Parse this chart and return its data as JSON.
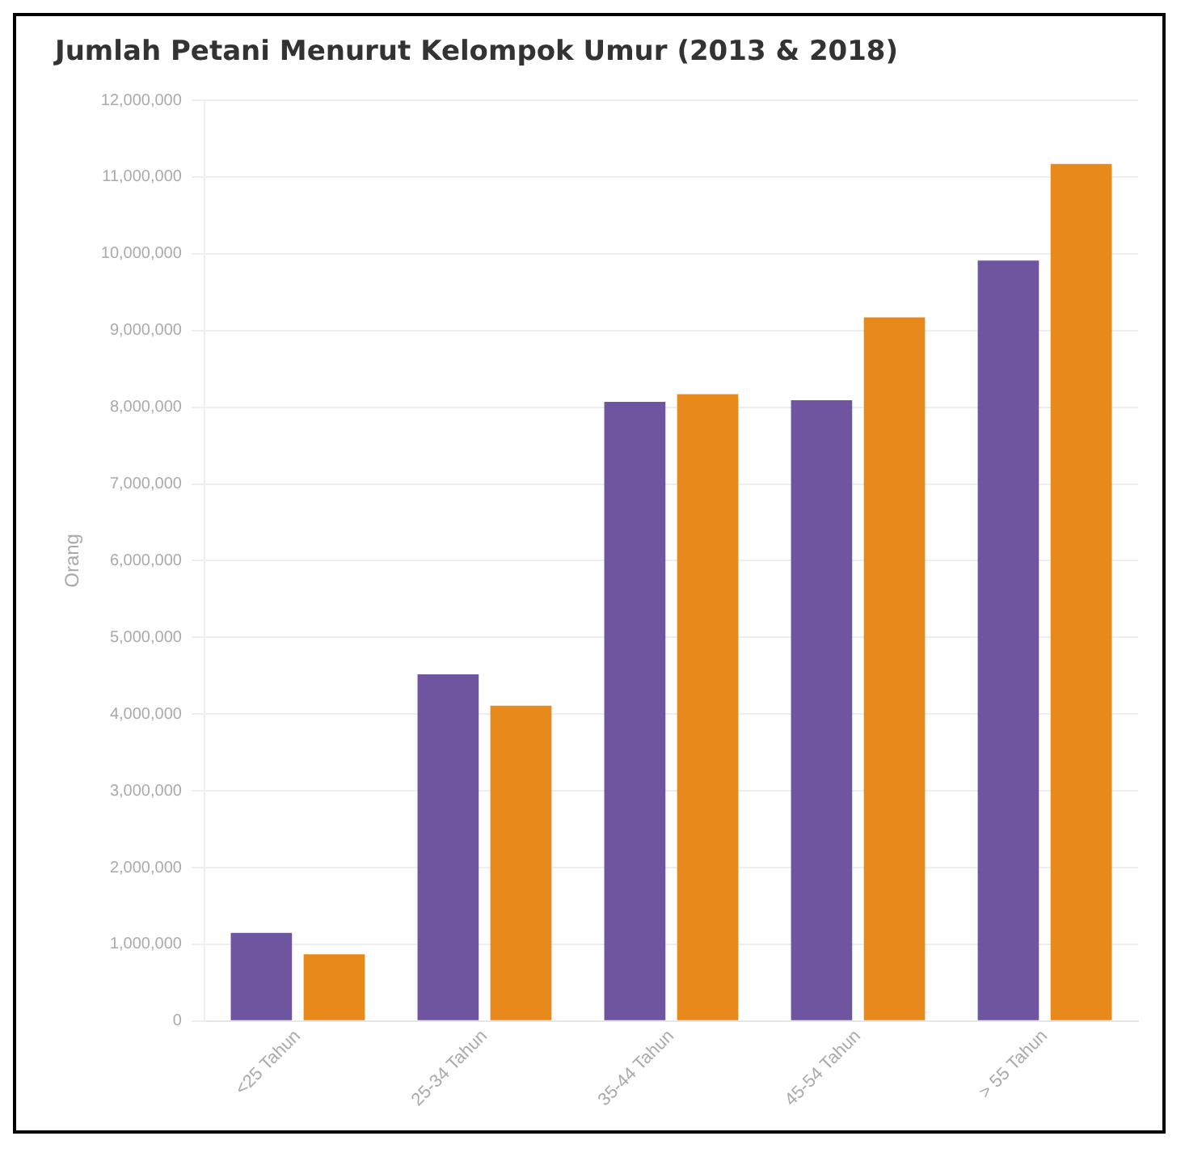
{
  "chart_data": {
    "type": "bar",
    "title": "Jumlah Petani Menurut Kelompok Umur (2013 & 2018)",
    "ylabel": "Orang",
    "categories": [
      "<25 Tahun",
      "25-34 Tahun",
      "35-44 Tahun",
      "45-54 Tahun",
      "> 55 Tahun"
    ],
    "series": [
      {
        "color": "#6f55a0",
        "values": [
          1150000,
          4520000,
          8070000,
          8090000,
          9910000
        ]
      },
      {
        "color": "#e8891c",
        "values": [
          870000,
          4110000,
          8170000,
          9170000,
          11170000
        ]
      }
    ],
    "ylim": [
      0,
      12000000
    ],
    "yticks": [
      {
        "value": 0,
        "label": "0"
      },
      {
        "value": 1000000,
        "label": "1,000,000"
      },
      {
        "value": 2000000,
        "label": "2,000,000"
      },
      {
        "value": 3000000,
        "label": "3,000,000"
      },
      {
        "value": 4000000,
        "label": "4,000,000"
      },
      {
        "value": 5000000,
        "label": "5,000,000"
      },
      {
        "value": 6000000,
        "label": "6,000,000"
      },
      {
        "value": 7000000,
        "label": "7,000,000"
      },
      {
        "value": 8000000,
        "label": "8,000,000"
      },
      {
        "value": 9000000,
        "label": "9,000,000"
      },
      {
        "value": 10000000,
        "label": "10,000,000"
      },
      {
        "value": 11000000,
        "label": "11,000,000"
      },
      {
        "value": 12000000,
        "label": "12,000,000"
      }
    ],
    "grid": "y",
    "legend": false
  }
}
